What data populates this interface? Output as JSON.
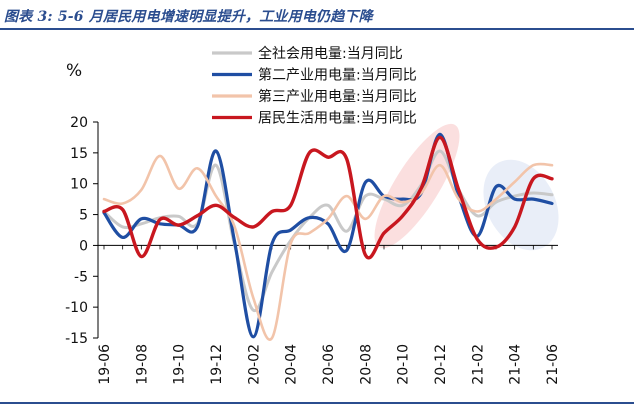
{
  "figure": {
    "title": "图表 3:  5-6 月居民用电增速明显提升，工业用电仍趋下降"
  },
  "chart_data": {
    "type": "line",
    "unit_label": "%",
    "ylim": [
      -15,
      20
    ],
    "y_ticks": [
      20,
      15,
      10,
      5,
      0,
      -5,
      -10,
      -15
    ],
    "x": [
      "19-06",
      "19-07",
      "19-08",
      "19-09",
      "19-10",
      "19-11",
      "19-12",
      "20-01",
      "20-02",
      "20-03",
      "20-04",
      "20-05",
      "20-06",
      "20-07",
      "20-08",
      "20-09",
      "20-10",
      "20-11",
      "20-12",
      "21-01",
      "21-02",
      "21-03",
      "21-04",
      "21-05",
      "21-06"
    ],
    "x_tick_labels": [
      "19-06",
      "19-08",
      "19-10",
      "19-12",
      "20-02",
      "20-04",
      "20-06",
      "20-08",
      "20-10",
      "20-12",
      "21-02",
      "21-04",
      "21-06"
    ],
    "grid": false,
    "legend_position": "top",
    "series": [
      {
        "name": "全社会用电量:当月同比",
        "color": "#c9c9c9",
        "values": [
          5.5,
          3.0,
          3.5,
          4.5,
          4.7,
          3.5,
          13.0,
          0.0,
          -10.5,
          -4.3,
          0.8,
          4.5,
          6.5,
          2.3,
          8.0,
          7.5,
          6.5,
          9.8,
          15.3,
          9.0,
          4.8,
          7.0,
          8.0,
          8.5,
          8.2
        ]
      },
      {
        "name": "第二产业用电量:当月同比",
        "color": "#1f4ea3",
        "values": [
          5.3,
          1.3,
          4.3,
          3.5,
          3.3,
          3.0,
          15.3,
          0.5,
          -14.8,
          0.3,
          2.5,
          4.5,
          3.5,
          -0.8,
          10.2,
          8.0,
          7.5,
          8.5,
          18.0,
          8.0,
          1.5,
          9.5,
          7.5,
          7.5,
          6.8
        ]
      },
      {
        "name": "第三产业用电量:当月同比",
        "color": "#f2c4aa",
        "values": [
          7.5,
          6.8,
          9.0,
          14.5,
          9.2,
          12.5,
          8.0,
          3.0,
          -8.5,
          -15.0,
          0.3,
          2.0,
          4.3,
          8.0,
          4.3,
          8.0,
          7.0,
          8.5,
          13.0,
          7.5,
          5.5,
          7.5,
          10.3,
          13.0,
          13.0
        ]
      },
      {
        "name": "居民生活用电量:当月同比",
        "color": "#c8171f",
        "values": [
          5.5,
          5.8,
          -1.8,
          4.2,
          3.3,
          4.8,
          6.5,
          4.5,
          3.0,
          5.5,
          6.5,
          15.0,
          14.3,
          14.0,
          -1.5,
          2.0,
          4.8,
          9.3,
          17.5,
          9.0,
          1.0,
          -0.3,
          3.0,
          10.8,
          10.8
        ]
      }
    ]
  }
}
